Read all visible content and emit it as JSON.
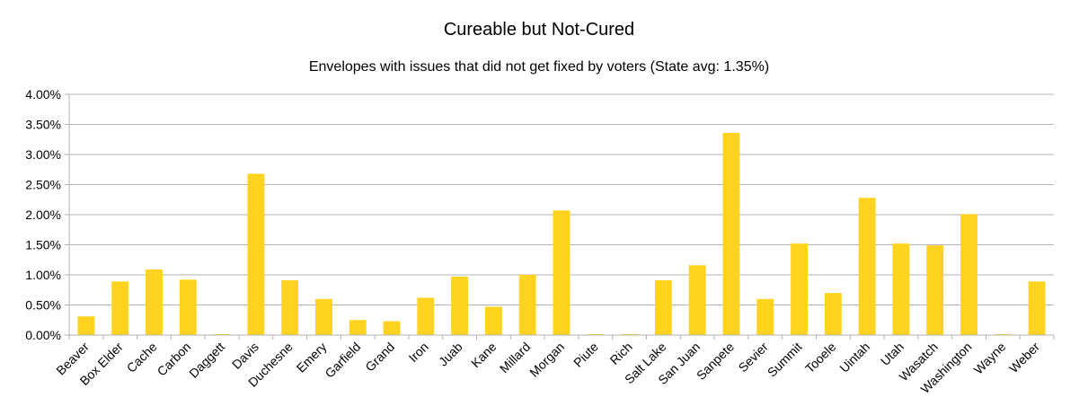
{
  "chart_data": {
    "type": "bar",
    "title": "Cureable but Not-Cured",
    "subtitle": "Envelopes with issues that did not get fixed by voters (State avg: 1.35%)",
    "xlabel": "",
    "ylabel": "",
    "ylim": [
      0,
      4.0
    ],
    "yticks": [
      "0.00%",
      "0.50%",
      "1.00%",
      "1.50%",
      "2.00%",
      "2.50%",
      "3.00%",
      "3.50%",
      "4.00%"
    ],
    "grid": true,
    "legend": "none",
    "bar_color": "#ffd320",
    "categories": [
      "Beaver",
      "Box Elder",
      "Cache",
      "Carbon",
      "Daggett",
      "Davis",
      "Duchesne",
      "Emery",
      "Garfield",
      "Grand",
      "Iron",
      "Juab",
      "Kane",
      "Millard",
      "Morgan",
      "Piute",
      "Rich",
      "Salt Lake",
      "San Juan",
      "Sanpete",
      "Sevier",
      "Summit",
      "Tooele",
      "Uintah",
      "Utah",
      "Wasatch",
      "Washington",
      "Wayne",
      "Weber"
    ],
    "values": [
      0.31,
      0.89,
      1.09,
      0.92,
      0.0,
      2.68,
      0.91,
      0.6,
      0.25,
      0.23,
      0.62,
      0.97,
      0.47,
      1.0,
      2.07,
      0.0,
      0.0,
      0.91,
      1.16,
      3.36,
      0.6,
      1.52,
      0.7,
      2.28,
      1.52,
      1.49,
      2.01,
      0.0,
      0.89
    ]
  }
}
